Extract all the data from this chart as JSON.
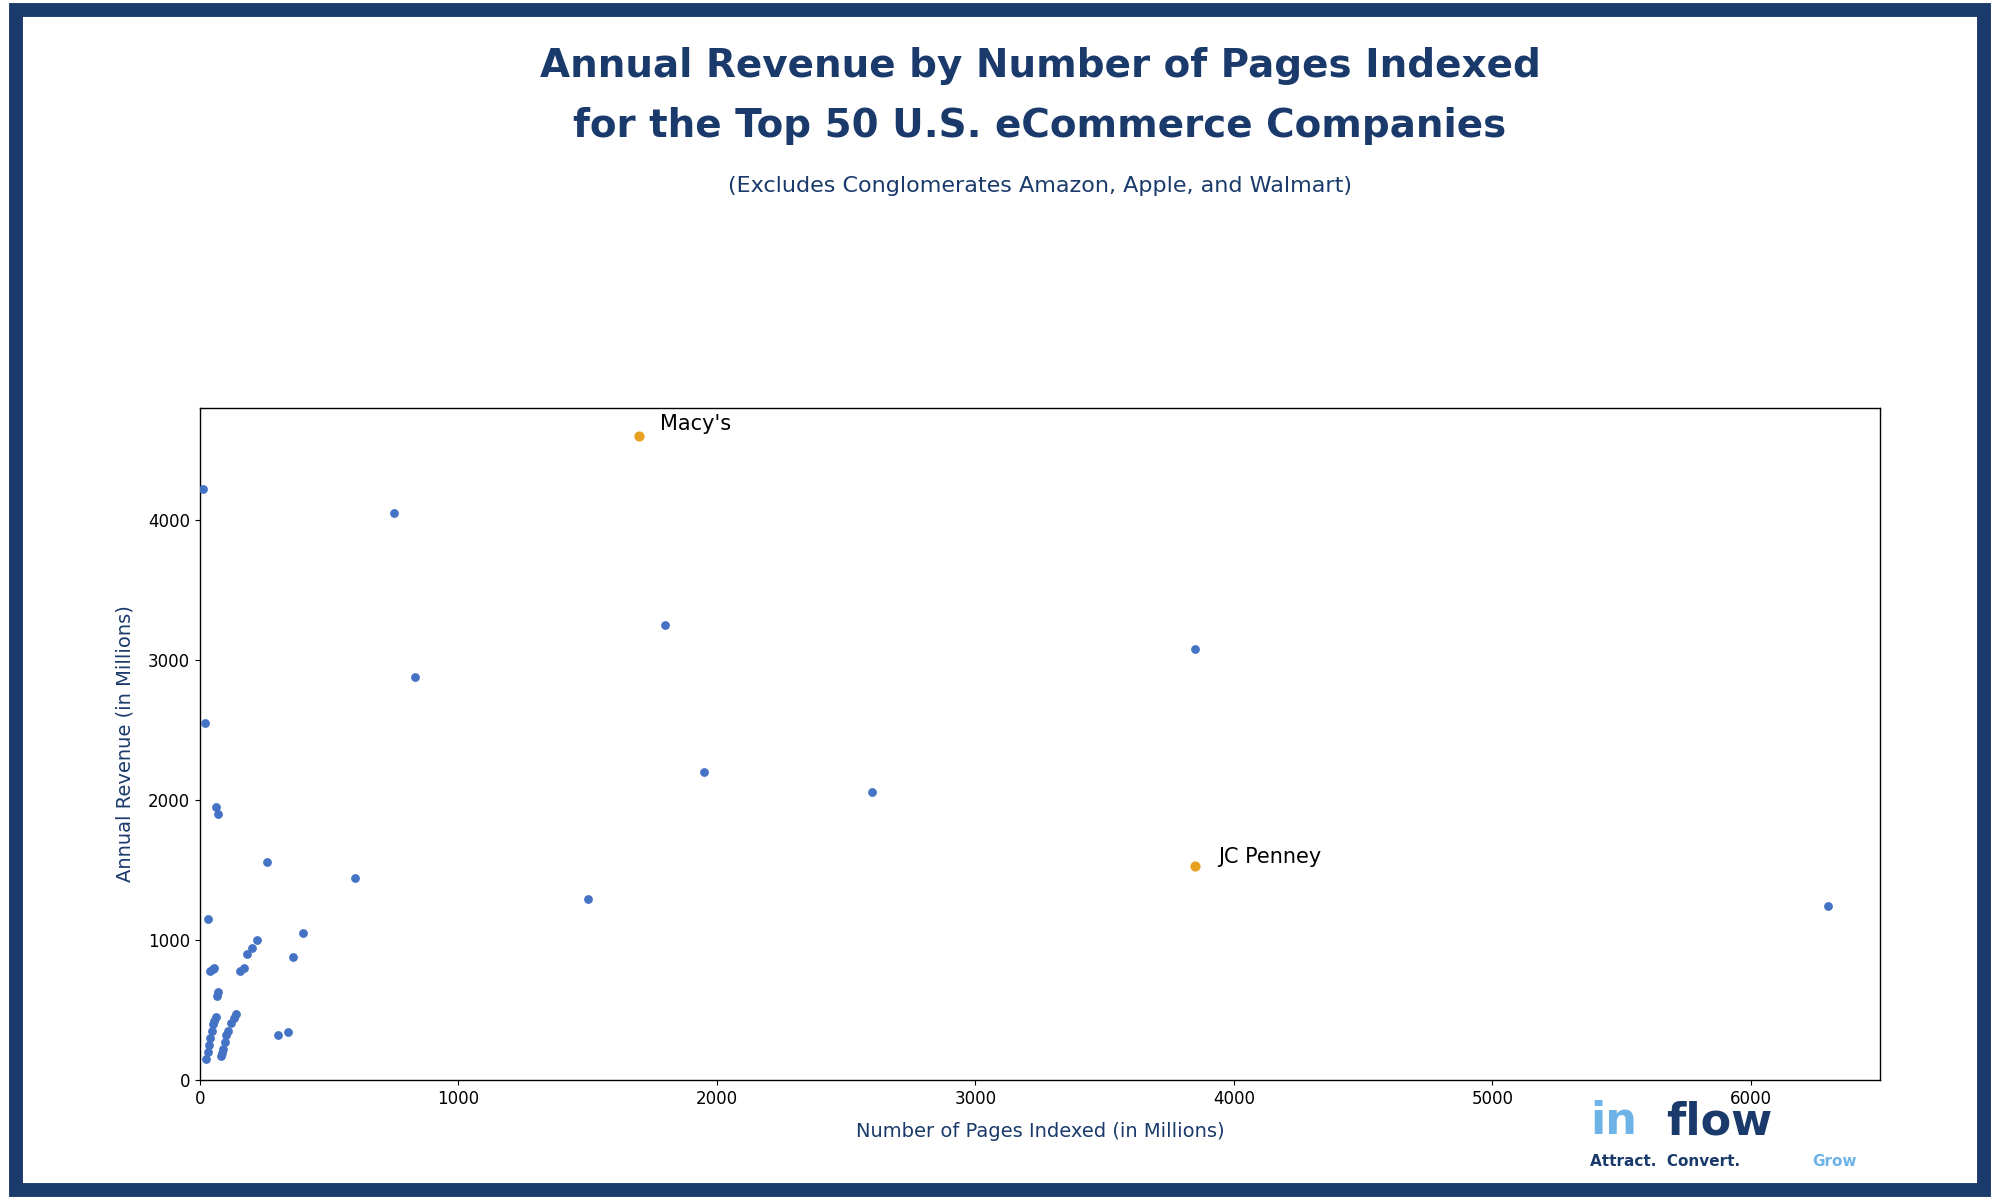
{
  "title_line1": "Annual Revenue by Number of Pages Indexed",
  "title_line2": "for the Top 50 U.S. eCommerce Companies",
  "subtitle": "(Excludes Conglomerates Amazon, Apple, and Walmart)",
  "xlabel": "Number of Pages Indexed (in Millions)",
  "ylabel": "Annual Revenue (in Millions)",
  "xlim": [
    0,
    6500
  ],
  "ylim": [
    0,
    4800
  ],
  "xticks": [
    0,
    1000,
    2000,
    3000,
    4000,
    5000,
    6000
  ],
  "yticks": [
    0,
    1000,
    2000,
    3000,
    4000
  ],
  "title_color": "#1a3a6b",
  "subtitle_color": "#1a3a6b",
  "dot_color": "#4472c4",
  "highlight_color": "#e8a020",
  "border_color": "#1a3a6b",
  "background_color": "#ffffff",
  "regular_points": [
    [
      10,
      4220
    ],
    [
      20,
      2550
    ],
    [
      30,
      1150
    ],
    [
      40,
      780
    ],
    [
      50,
      790
    ],
    [
      55,
      800
    ],
    [
      60,
      1950
    ],
    [
      70,
      1900
    ],
    [
      25,
      150
    ],
    [
      30,
      200
    ],
    [
      35,
      250
    ],
    [
      40,
      300
    ],
    [
      45,
      350
    ],
    [
      50,
      400
    ],
    [
      55,
      420
    ],
    [
      60,
      450
    ],
    [
      65,
      600
    ],
    [
      70,
      630
    ],
    [
      80,
      170
    ],
    [
      85,
      190
    ],
    [
      90,
      220
    ],
    [
      95,
      270
    ],
    [
      100,
      320
    ],
    [
      110,
      350
    ],
    [
      120,
      410
    ],
    [
      130,
      440
    ],
    [
      140,
      470
    ],
    [
      155,
      780
    ],
    [
      170,
      800
    ],
    [
      180,
      900
    ],
    [
      200,
      940
    ],
    [
      220,
      1000
    ],
    [
      260,
      1560
    ],
    [
      300,
      320
    ],
    [
      340,
      340
    ],
    [
      360,
      880
    ],
    [
      400,
      1050
    ],
    [
      600,
      1440
    ],
    [
      750,
      4050
    ],
    [
      830,
      2880
    ],
    [
      1500,
      1290
    ],
    [
      1800,
      3250
    ],
    [
      1950,
      2200
    ],
    [
      2600,
      2060
    ],
    [
      3850,
      3080
    ],
    [
      6300,
      1240
    ]
  ],
  "macys": [
    1700,
    4600
  ],
  "jcpenney": [
    3850,
    1530
  ],
  "macys_label": "Macy's",
  "jcpenney_label": "JC Penney",
  "inflow_color_in": "#6db3e8",
  "inflow_color_flow": "#1a3a6b",
  "inflow_tagline": "Attract.  Convert.  Grow"
}
